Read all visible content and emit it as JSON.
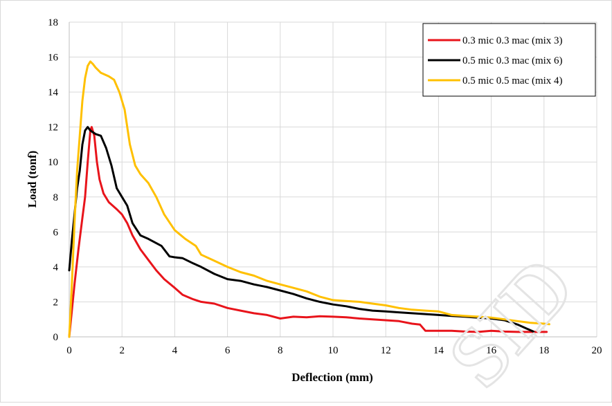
{
  "chart_data": {
    "type": "line",
    "title": "",
    "xlabel": "Deflection (mm)",
    "ylabel": "Load (tonf)",
    "xlim": [
      0,
      20
    ],
    "ylim": [
      0,
      18
    ],
    "x_ticks": [
      "0",
      "2",
      "4",
      "6",
      "8",
      "10",
      "12",
      "14",
      "16",
      "18",
      "20"
    ],
    "y_ticks": [
      "0",
      "2",
      "4",
      "6",
      "8",
      "10",
      "12",
      "14",
      "16",
      "18"
    ],
    "grid": true,
    "legend_position": "top-right",
    "watermark": "SID",
    "series": [
      {
        "name": "0.3 mic 0.3 mac (mix 3)",
        "color": "#e8141b",
        "points": [
          [
            0.0,
            0.0
          ],
          [
            0.1,
            1.5
          ],
          [
            0.2,
            3.0
          ],
          [
            0.35,
            5.0
          ],
          [
            0.5,
            6.8
          ],
          [
            0.6,
            8.0
          ],
          [
            0.7,
            10.0
          ],
          [
            0.8,
            11.8
          ],
          [
            0.85,
            12.0
          ],
          [
            0.95,
            11.5
          ],
          [
            1.05,
            10.0
          ],
          [
            1.15,
            9.0
          ],
          [
            1.3,
            8.2
          ],
          [
            1.5,
            7.7
          ],
          [
            1.8,
            7.3
          ],
          [
            2.0,
            7.0
          ],
          [
            2.2,
            6.5
          ],
          [
            2.4,
            5.8
          ],
          [
            2.7,
            5.0
          ],
          [
            3.0,
            4.4
          ],
          [
            3.3,
            3.8
          ],
          [
            3.6,
            3.3
          ],
          [
            4.0,
            2.8
          ],
          [
            4.3,
            2.4
          ],
          [
            4.7,
            2.15
          ],
          [
            5.0,
            2.0
          ],
          [
            5.5,
            1.9
          ],
          [
            6.0,
            1.65
          ],
          [
            6.5,
            1.5
          ],
          [
            7.0,
            1.35
          ],
          [
            7.5,
            1.25
          ],
          [
            8.0,
            1.05
          ],
          [
            8.5,
            1.15
          ],
          [
            9.0,
            1.12
          ],
          [
            9.5,
            1.18
          ],
          [
            10.0,
            1.15
          ],
          [
            10.5,
            1.12
          ],
          [
            11.0,
            1.05
          ],
          [
            11.5,
            1.0
          ],
          [
            12.0,
            0.95
          ],
          [
            12.5,
            0.9
          ],
          [
            13.0,
            0.75
          ],
          [
            13.3,
            0.7
          ],
          [
            13.5,
            0.35
          ],
          [
            14.0,
            0.35
          ],
          [
            14.5,
            0.35
          ],
          [
            15.0,
            0.3
          ],
          [
            15.5,
            0.28
          ],
          [
            16.0,
            0.35
          ],
          [
            16.5,
            0.3
          ],
          [
            17.0,
            0.28
          ],
          [
            17.5,
            0.28
          ],
          [
            18.0,
            0.28
          ],
          [
            18.1,
            0.28
          ]
        ]
      },
      {
        "name": "0.5 mic 0.3 mac (mix 6)",
        "color": "#000000",
        "points": [
          [
            0.0,
            3.8
          ],
          [
            0.1,
            5.5
          ],
          [
            0.2,
            7.0
          ],
          [
            0.3,
            8.5
          ],
          [
            0.4,
            9.5
          ],
          [
            0.5,
            11.0
          ],
          [
            0.6,
            11.8
          ],
          [
            0.7,
            12.0
          ],
          [
            0.8,
            11.8
          ],
          [
            1.0,
            11.6
          ],
          [
            1.2,
            11.5
          ],
          [
            1.4,
            10.8
          ],
          [
            1.6,
            9.8
          ],
          [
            1.8,
            8.5
          ],
          [
            2.0,
            8.0
          ],
          [
            2.2,
            7.5
          ],
          [
            2.4,
            6.5
          ],
          [
            2.7,
            5.8
          ],
          [
            3.0,
            5.6
          ],
          [
            3.5,
            5.2
          ],
          [
            3.8,
            4.6
          ],
          [
            4.0,
            4.55
          ],
          [
            4.3,
            4.5
          ],
          [
            4.7,
            4.2
          ],
          [
            5.0,
            4.0
          ],
          [
            5.5,
            3.6
          ],
          [
            6.0,
            3.3
          ],
          [
            6.5,
            3.2
          ],
          [
            7.0,
            3.0
          ],
          [
            7.5,
            2.85
          ],
          [
            8.0,
            2.65
          ],
          [
            8.5,
            2.45
          ],
          [
            9.0,
            2.2
          ],
          [
            9.5,
            2.0
          ],
          [
            10.0,
            1.85
          ],
          [
            10.5,
            1.75
          ],
          [
            11.0,
            1.6
          ],
          [
            11.5,
            1.5
          ],
          [
            12.0,
            1.45
          ],
          [
            12.5,
            1.4
          ],
          [
            13.0,
            1.35
          ],
          [
            13.5,
            1.3
          ],
          [
            14.0,
            1.25
          ],
          [
            14.5,
            1.2
          ],
          [
            15.0,
            1.15
          ],
          [
            15.5,
            1.1
          ],
          [
            16.0,
            1.05
          ],
          [
            16.5,
            0.95
          ],
          [
            17.0,
            0.7
          ],
          [
            17.3,
            0.5
          ],
          [
            17.6,
            0.3
          ]
        ]
      },
      {
        "name": "0.5 mic 0.5 mac (mix 4)",
        "color": "#ffc000",
        "points": [
          [
            0.0,
            0.0
          ],
          [
            0.1,
            3.0
          ],
          [
            0.2,
            6.5
          ],
          [
            0.3,
            9.5
          ],
          [
            0.4,
            11.5
          ],
          [
            0.5,
            13.5
          ],
          [
            0.6,
            14.8
          ],
          [
            0.7,
            15.5
          ],
          [
            0.8,
            15.75
          ],
          [
            0.9,
            15.6
          ],
          [
            1.0,
            15.4
          ],
          [
            1.2,
            15.1
          ],
          [
            1.5,
            14.9
          ],
          [
            1.7,
            14.7
          ],
          [
            1.9,
            14.0
          ],
          [
            2.1,
            13.0
          ],
          [
            2.3,
            11.0
          ],
          [
            2.5,
            9.8
          ],
          [
            2.7,
            9.3
          ],
          [
            3.0,
            8.8
          ],
          [
            3.3,
            8.0
          ],
          [
            3.6,
            7.0
          ],
          [
            4.0,
            6.1
          ],
          [
            4.4,
            5.6
          ],
          [
            4.8,
            5.2
          ],
          [
            5.0,
            4.7
          ],
          [
            5.5,
            4.35
          ],
          [
            6.0,
            4.0
          ],
          [
            6.5,
            3.7
          ],
          [
            7.0,
            3.5
          ],
          [
            7.5,
            3.2
          ],
          [
            8.0,
            3.0
          ],
          [
            8.5,
            2.8
          ],
          [
            9.0,
            2.6
          ],
          [
            9.5,
            2.3
          ],
          [
            10.0,
            2.1
          ],
          [
            10.5,
            2.05
          ],
          [
            11.0,
            2.0
          ],
          [
            11.5,
            1.9
          ],
          [
            12.0,
            1.8
          ],
          [
            12.5,
            1.65
          ],
          [
            13.0,
            1.55
          ],
          [
            13.5,
            1.5
          ],
          [
            14.0,
            1.45
          ],
          [
            14.5,
            1.25
          ],
          [
            15.0,
            1.2
          ],
          [
            15.5,
            1.15
          ],
          [
            16.0,
            1.1
          ],
          [
            16.5,
            1.0
          ],
          [
            17.0,
            0.9
          ],
          [
            17.5,
            0.8
          ],
          [
            18.0,
            0.75
          ],
          [
            18.2,
            0.72
          ]
        ]
      }
    ]
  }
}
